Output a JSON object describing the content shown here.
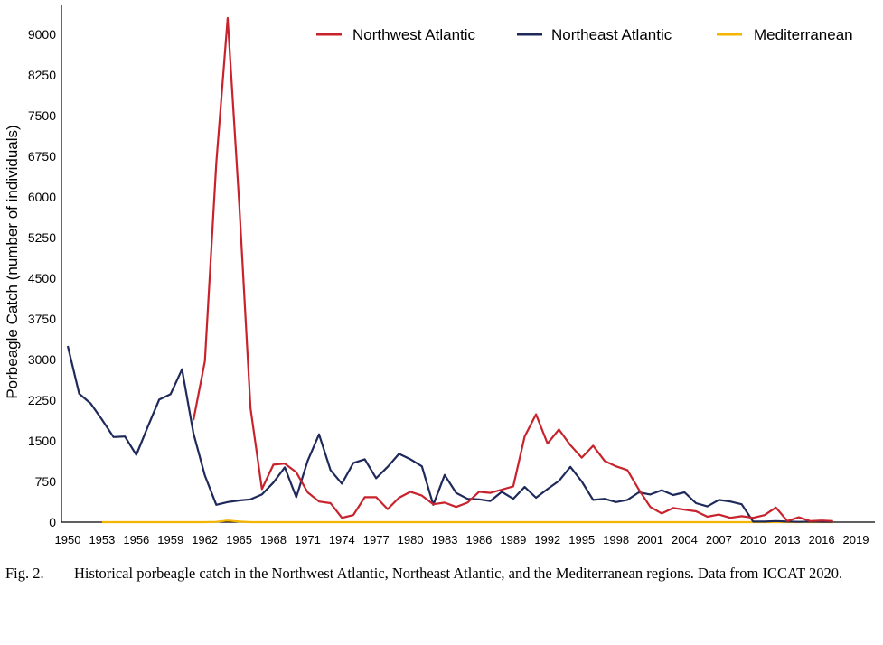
{
  "chart_data": {
    "type": "line",
    "title": "",
    "xlabel": "",
    "ylabel": "Porbeagle Catch (number of individuals)",
    "xlim": [
      1950,
      2019
    ],
    "ylim": [
      0,
      9400
    ],
    "y_ticks": [
      0,
      750,
      1500,
      2250,
      3000,
      3750,
      4500,
      5250,
      6000,
      6750,
      7500,
      8250,
      9000
    ],
    "x_ticks": [
      1950,
      1953,
      1956,
      1959,
      1962,
      1965,
      1968,
      1971,
      1974,
      1977,
      1980,
      1983,
      1986,
      1989,
      1992,
      1995,
      1998,
      2001,
      2004,
      2007,
      2010,
      2013,
      2016,
      2019
    ],
    "grid": false,
    "legend_position": "top-right",
    "series": [
      {
        "name": "Northwest Atlantic",
        "color": "#c8232c",
        "points": [
          [
            1961,
            1880
          ],
          [
            1962,
            2970
          ],
          [
            1963,
            6620
          ],
          [
            1964,
            9300
          ],
          [
            1965,
            5900
          ],
          [
            1966,
            2100
          ],
          [
            1967,
            610
          ],
          [
            1968,
            1060
          ],
          [
            1969,
            1080
          ],
          [
            1970,
            920
          ],
          [
            1971,
            550
          ],
          [
            1972,
            380
          ],
          [
            1973,
            350
          ],
          [
            1974,
            80
          ],
          [
            1975,
            130
          ],
          [
            1976,
            460
          ],
          [
            1977,
            460
          ],
          [
            1978,
            240
          ],
          [
            1979,
            450
          ],
          [
            1980,
            560
          ],
          [
            1981,
            490
          ],
          [
            1982,
            330
          ],
          [
            1983,
            360
          ],
          [
            1984,
            280
          ],
          [
            1985,
            360
          ],
          [
            1986,
            560
          ],
          [
            1987,
            540
          ],
          [
            1988,
            600
          ],
          [
            1989,
            660
          ],
          [
            1990,
            1580
          ],
          [
            1991,
            1990
          ],
          [
            1992,
            1450
          ],
          [
            1993,
            1710
          ],
          [
            1994,
            1420
          ],
          [
            1995,
            1190
          ],
          [
            1996,
            1410
          ],
          [
            1997,
            1130
          ],
          [
            1998,
            1030
          ],
          [
            1999,
            960
          ],
          [
            2000,
            600
          ],
          [
            2001,
            280
          ],
          [
            2002,
            160
          ],
          [
            2003,
            260
          ],
          [
            2004,
            230
          ],
          [
            2005,
            200
          ],
          [
            2006,
            100
          ],
          [
            2007,
            140
          ],
          [
            2008,
            80
          ],
          [
            2009,
            110
          ],
          [
            2010,
            80
          ],
          [
            2011,
            130
          ],
          [
            2012,
            270
          ],
          [
            2013,
            20
          ],
          [
            2014,
            90
          ],
          [
            2015,
            20
          ],
          [
            2016,
            30
          ],
          [
            2017,
            20
          ]
        ]
      },
      {
        "name": "Northeast Atlantic",
        "color": "#1f2a5a",
        "points": [
          [
            1950,
            3250
          ],
          [
            1951,
            2370
          ],
          [
            1952,
            2190
          ],
          [
            1953,
            1890
          ],
          [
            1954,
            1570
          ],
          [
            1955,
            1580
          ],
          [
            1956,
            1240
          ],
          [
            1957,
            1760
          ],
          [
            1958,
            2260
          ],
          [
            1959,
            2360
          ],
          [
            1960,
            2820
          ],
          [
            1961,
            1640
          ],
          [
            1962,
            860
          ],
          [
            1963,
            320
          ],
          [
            1964,
            370
          ],
          [
            1965,
            400
          ],
          [
            1966,
            420
          ],
          [
            1967,
            510
          ],
          [
            1968,
            730
          ],
          [
            1969,
            1010
          ],
          [
            1970,
            460
          ],
          [
            1971,
            1130
          ],
          [
            1972,
            1620
          ],
          [
            1973,
            960
          ],
          [
            1974,
            710
          ],
          [
            1975,
            1090
          ],
          [
            1976,
            1160
          ],
          [
            1977,
            810
          ],
          [
            1978,
            1020
          ],
          [
            1979,
            1260
          ],
          [
            1980,
            1160
          ],
          [
            1981,
            1030
          ],
          [
            1982,
            320
          ],
          [
            1983,
            870
          ],
          [
            1984,
            540
          ],
          [
            1985,
            430
          ],
          [
            1986,
            420
          ],
          [
            1987,
            390
          ],
          [
            1988,
            560
          ],
          [
            1989,
            430
          ],
          [
            1990,
            650
          ],
          [
            1991,
            450
          ],
          [
            1992,
            610
          ],
          [
            1993,
            760
          ],
          [
            1994,
            1020
          ],
          [
            1995,
            750
          ],
          [
            1996,
            410
          ],
          [
            1997,
            430
          ],
          [
            1998,
            370
          ],
          [
            1999,
            410
          ],
          [
            2000,
            550
          ],
          [
            2001,
            510
          ],
          [
            2002,
            590
          ],
          [
            2003,
            500
          ],
          [
            2004,
            550
          ],
          [
            2005,
            350
          ],
          [
            2006,
            290
          ],
          [
            2007,
            410
          ],
          [
            2008,
            380
          ],
          [
            2009,
            330
          ],
          [
            2010,
            10
          ],
          [
            2011,
            10
          ],
          [
            2012,
            20
          ],
          [
            2013,
            10
          ],
          [
            2014,
            5
          ],
          [
            2015,
            10
          ],
          [
            2016,
            5
          ],
          [
            2017,
            5
          ]
        ]
      },
      {
        "name": "Mediterranean",
        "color": "#f4b400",
        "points": [
          [
            1953,
            0
          ],
          [
            1960,
            0
          ],
          [
            1962,
            0
          ],
          [
            1963,
            5
          ],
          [
            1964,
            30
          ],
          [
            1965,
            10
          ],
          [
            1966,
            0
          ],
          [
            1975,
            0
          ],
          [
            1990,
            0
          ],
          [
            2005,
            0
          ],
          [
            2010,
            0
          ],
          [
            2017,
            0
          ]
        ]
      }
    ]
  },
  "caption": {
    "label": "Fig. 2.",
    "text": "Historical porbeagle catch in the Northwest Atlantic, Northeast Atlantic, and the Mediterranean regions. Data from ICCAT 2020."
  }
}
